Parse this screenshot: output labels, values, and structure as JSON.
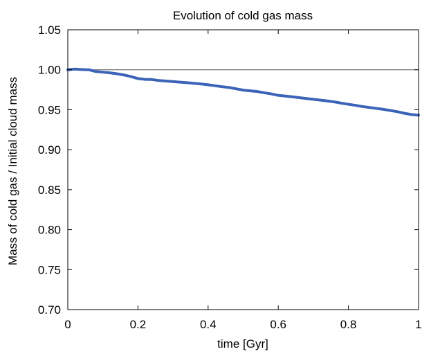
{
  "chart_data": {
    "type": "line",
    "title": "Evolution of cold gas mass",
    "xlabel": "time [Gyr]",
    "ylabel": "Mass of cold gas / Initial cloud mass",
    "xlim": [
      0,
      1
    ],
    "ylim": [
      0.7,
      1.05
    ],
    "xticks": [
      0,
      0.2,
      0.4,
      0.6,
      0.8,
      1
    ],
    "xtick_labels": [
      "0",
      "0.2",
      "0.4",
      "0.6",
      "0.8",
      "1"
    ],
    "yticks": [
      0.7,
      0.75,
      0.8,
      0.85,
      0.9,
      0.95,
      1.0,
      1.05
    ],
    "ytick_labels": [
      "0.70",
      "0.75",
      "0.80",
      "0.85",
      "0.90",
      "0.95",
      "1.00",
      "1.05"
    ],
    "reference_line": {
      "y": 1.0,
      "color": "#555555"
    },
    "series": [
      {
        "name": "cold gas mass",
        "color": "#3b63b8",
        "x": [
          0,
          0.02,
          0.04,
          0.06,
          0.08,
          0.1,
          0.12,
          0.14,
          0.16,
          0.18,
          0.2,
          0.22,
          0.24,
          0.26,
          0.3,
          0.34,
          0.38,
          0.4,
          0.42,
          0.44,
          0.46,
          0.48,
          0.5,
          0.54,
          0.56,
          0.58,
          0.6,
          0.64,
          0.68,
          0.7,
          0.74,
          0.76,
          0.78,
          0.8,
          0.82,
          0.84,
          0.86,
          0.9,
          0.94,
          0.96,
          0.98,
          1.0
        ],
        "y": [
          1.0,
          1.0008,
          1.0003,
          1.0,
          0.9978,
          0.997,
          0.9962,
          0.995,
          0.9935,
          0.9915,
          0.989,
          0.988,
          0.9878,
          0.9865,
          0.9852,
          0.9838,
          0.9822,
          0.9812,
          0.98,
          0.9788,
          0.9778,
          0.9762,
          0.9745,
          0.9728,
          0.9712,
          0.9698,
          0.968,
          0.9662,
          0.964,
          0.963,
          0.961,
          0.9598,
          0.9582,
          0.9568,
          0.9555,
          0.954,
          0.9528,
          0.9505,
          0.9475,
          0.9455,
          0.944,
          0.9432
        ]
      }
    ]
  }
}
